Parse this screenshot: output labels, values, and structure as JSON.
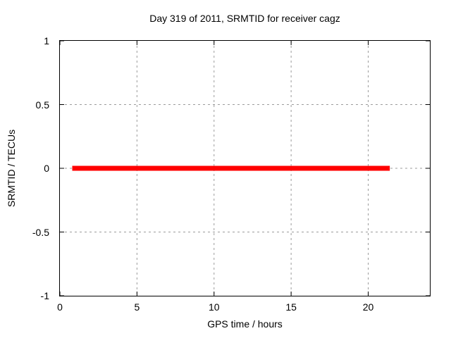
{
  "chart_data": {
    "type": "line",
    "title": "Day 319 of 2011, SRMTID for receiver cagz",
    "xlabel": "GPS time / hours",
    "ylabel": "SRMTID / TECUs",
    "xlim": [
      0,
      24
    ],
    "ylim": [
      -1,
      1
    ],
    "xticks": [
      0,
      5,
      10,
      15,
      20
    ],
    "yticks": [
      1,
      0.5,
      0,
      -0.5,
      -1
    ],
    "grid": true,
    "grid_xticks": [
      5,
      10,
      15,
      20
    ],
    "grid_yticks": [
      0.5,
      0,
      -0.5
    ],
    "legend": "none",
    "series": [
      {
        "name": "srmtid",
        "color": "#ff0000",
        "line_width": 7,
        "x": [
          0.8,
          21.4
        ],
        "y": [
          0,
          0
        ]
      }
    ]
  },
  "colors": {
    "background": "#ffffff",
    "border": "#000000",
    "grid": "#9b9b9b",
    "tick": "#000000",
    "text": "#000000",
    "series": "#ff0000"
  },
  "icons": {}
}
